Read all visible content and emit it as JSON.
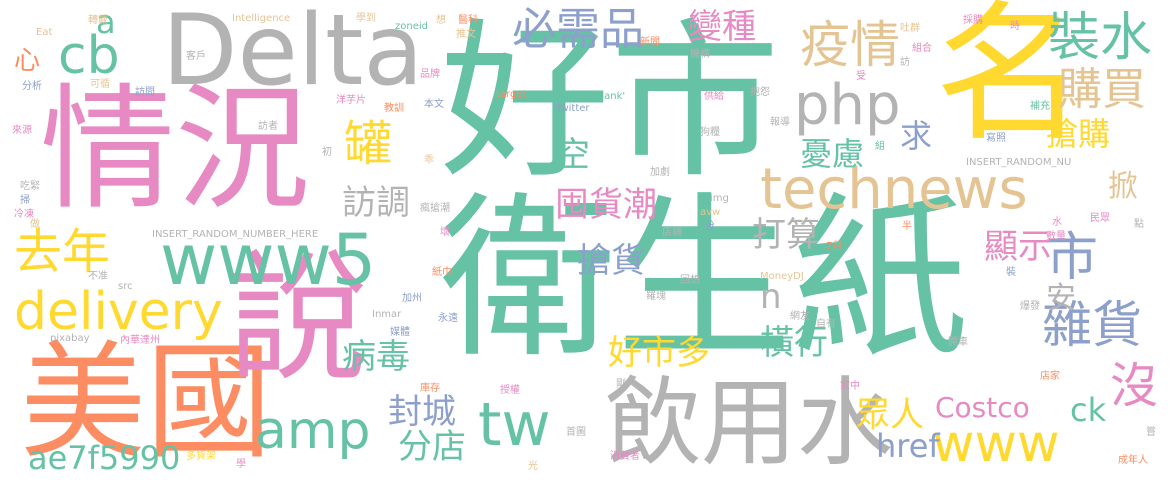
{
  "palette": {
    "teal": "#66c2a5",
    "orange": "#fc8d62",
    "blue": "#8da0cb",
    "pink": "#e78ac3",
    "yellow": "#ffd92f",
    "tan": "#e5c494",
    "gray": "#b3b3b3",
    "green": "#a6d854"
  },
  "words": [
    {
      "text": "衛生紙",
      "color": "#66c2a5"
    },
    {
      "text": "好市",
      "color": "#66c2a5"
    },
    {
      "text": "Delta",
      "color": "#b3b3b3"
    },
    {
      "text": "情況",
      "color": "#e78ac3"
    },
    {
      "text": "名",
      "color": "#ffd92f"
    },
    {
      "text": "美國",
      "color": "#fc8d62"
    },
    {
      "text": "說",
      "color": "#e78ac3"
    },
    {
      "text": "飲用水",
      "color": "#b3b3b3"
    },
    {
      "text": "technews",
      "color": "#e5c494"
    },
    {
      "text": "www5",
      "color": "#66c2a5"
    },
    {
      "text": "delivery",
      "color": "#ffd92f"
    },
    {
      "text": "www",
      "color": "#ffd92f"
    },
    {
      "text": "amp",
      "color": "#66c2a5"
    },
    {
      "text": "tw",
      "color": "#66c2a5"
    },
    {
      "text": "php",
      "color": "#b3b3b3"
    },
    {
      "text": "cb",
      "color": "#66c2a5"
    },
    {
      "text": "疫情",
      "color": "#e5c494"
    },
    {
      "text": "裝水",
      "color": "#66c2a5"
    },
    {
      "text": "購買",
      "color": "#e5c494"
    },
    {
      "text": "必需品",
      "color": "#8da0cb"
    },
    {
      "text": "去年",
      "color": "#ffd92f"
    },
    {
      "text": "市",
      "color": "#8da0cb"
    },
    {
      "text": "雜貨",
      "color": "#8da0cb"
    },
    {
      "text": "沒",
      "color": "#e78ac3"
    },
    {
      "text": "Costco",
      "color": "#e78ac3"
    },
    {
      "text": "好市多",
      "color": "#ffd92f"
    },
    {
      "text": "罐",
      "color": "#ffd92f"
    },
    {
      "text": "變種",
      "color": "#e78ac3"
    },
    {
      "text": "搶購",
      "color": "#ffd92f"
    },
    {
      "text": "憂慮",
      "color": "#66c2a5"
    },
    {
      "text": "訪調",
      "color": "#b3b3b3"
    },
    {
      "text": "囤貨潮",
      "color": "#e78ac3"
    },
    {
      "text": "打算",
      "color": "#b3b3b3"
    },
    {
      "text": "搶貨",
      "color": "#8da0cb"
    },
    {
      "text": "顯示",
      "color": "#e78ac3"
    },
    {
      "text": "病毒",
      "color": "#66c2a5"
    },
    {
      "text": "橫行",
      "color": "#66c2a5"
    },
    {
      "text": "封城",
      "color": "#8da0cb"
    },
    {
      "text": "分店",
      "color": "#66c2a5"
    },
    {
      "text": "眾人",
      "color": "#ffd92f"
    },
    {
      "text": "ck",
      "color": "#66c2a5"
    },
    {
      "text": "href",
      "color": "#8da0cb"
    },
    {
      "text": "ae7f5990",
      "color": "#66c2a5"
    },
    {
      "text": "空",
      "color": "#66c2a5"
    },
    {
      "text": "求",
      "color": "#8da0cb"
    },
    {
      "text": "安",
      "color": "#b3b3b3"
    },
    {
      "text": "n",
      "color": "#b3b3b3"
    },
    {
      "text": "掀",
      "color": "#e5c494"
    },
    {
      "text": "a",
      "color": "#66c2a5"
    },
    {
      "text": "心",
      "color": "#fc8d62"
    },
    {
      "text": "Intelligence",
      "color": "#e5c494"
    },
    {
      "text": "Eat",
      "color": "#e5c494"
    },
    {
      "text": "轉載",
      "color": "#e5c494"
    },
    {
      "text": "學到",
      "color": "#e5c494"
    },
    {
      "text": "zoneid",
      "color": "#66c2a5"
    },
    {
      "text": "想",
      "color": "#e5c494"
    },
    {
      "text": "醫科",
      "color": "#fc8d62"
    },
    {
      "text": "推文",
      "color": "#e5c494"
    },
    {
      "text": "新聞",
      "color": "#fc8d62"
    },
    {
      "text": "機構",
      "color": "#b3b3b3"
    },
    {
      "text": "客戶",
      "color": "#b3b3b3"
    },
    {
      "text": "品牌",
      "color": "#e78ac3"
    },
    {
      "text": "分析",
      "color": "#8da0cb"
    },
    {
      "text": "可循",
      "color": "#e5c494"
    },
    {
      "text": "訪問",
      "color": "#8da0cb"
    },
    {
      "text": "洋芋片",
      "color": "#e78ac3"
    },
    {
      "text": "教訓",
      "color": "#fc8d62"
    },
    {
      "text": "本文",
      "color": "#8da0cb"
    },
    {
      "text": "target",
      "color": "#fc8d62"
    },
    {
      "text": "_blank'",
      "color": "#66c2a5"
    },
    {
      "text": "供給",
      "color": "#e78ac3"
    },
    {
      "text": "抱怨",
      "color": "#b3b3b3"
    },
    {
      "text": "Twitter",
      "color": "#8da0cb"
    },
    {
      "text": "來源",
      "color": "#e78ac3"
    },
    {
      "text": "訪者",
      "color": "#b3b3b3"
    },
    {
      "text": "報導",
      "color": "#b3b3b3"
    },
    {
      "text": "狗糧",
      "color": "#b3b3b3"
    },
    {
      "text": "加劇",
      "color": "#b3b3b3"
    },
    {
      "text": "初",
      "color": "#b3b3b3"
    },
    {
      "text": "乖",
      "color": "#e5c494"
    },
    {
      "text": "吃緊",
      "color": "#b3b3b3"
    },
    {
      "text": "掃",
      "color": "#8da0cb"
    },
    {
      "text": "冷凍",
      "color": "#e78ac3"
    },
    {
      "text": "瘋搶潮",
      "color": "#b3b3b3"
    },
    {
      "text": "img",
      "color": "#b3b3b3"
    },
    {
      "text": "avw",
      "color": "#e5c494"
    },
    {
      "text": "做",
      "color": "#e5c494"
    },
    {
      "text": "INSERT_RANDOM_NUMBER_HERE",
      "color": "#b3b3b3"
    },
    {
      "text": "壞",
      "color": "#e78ac3"
    },
    {
      "text": "店鋪",
      "color": "#b3b3b3"
    },
    {
      "text": "分",
      "color": "#8da0cb"
    },
    {
      "text": "不准",
      "color": "#b3b3b3"
    },
    {
      "text": "紙巾",
      "color": "#fc8d62"
    },
    {
      "text": "src",
      "color": "#b3b3b3"
    },
    {
      "text": "7月",
      "color": "#fc8d62"
    },
    {
      "text": "回想",
      "color": "#b3b3b3"
    },
    {
      "text": "羅塊",
      "color": "#b3b3b3"
    },
    {
      "text": "MoneyDJ",
      "color": "#e5c494"
    },
    {
      "text": "加州",
      "color": "#8da0cb"
    },
    {
      "text": "Inmar",
      "color": "#b3b3b3"
    },
    {
      "text": "網友",
      "color": "#b3b3b3"
    },
    {
      "text": "媒體",
      "color": "#8da0cb"
    },
    {
      "text": "永遠",
      "color": "#8da0cb"
    },
    {
      "text": "自有",
      "color": "#b3b3b3"
    },
    {
      "text": "pixabay",
      "color": "#b3b3b3"
    },
    {
      "text": "內華達州",
      "color": "#e78ac3"
    },
    {
      "text": "授權",
      "color": "#e78ac3"
    },
    {
      "text": "剛",
      "color": "#b3b3b3"
    },
    {
      "text": "家中",
      "color": "#e78ac3"
    },
    {
      "text": "庫存",
      "color": "#fc8d62"
    },
    {
      "text": "首圖",
      "color": "#b3b3b3"
    },
    {
      "text": "消費者",
      "color": "#e78ac3"
    },
    {
      "text": "多貨架",
      "color": "#ffd92f"
    },
    {
      "text": "學",
      "color": "#e78ac3"
    },
    {
      "text": "光",
      "color": "#e5c494"
    },
    {
      "text": "成年人",
      "color": "#fc8d62"
    },
    {
      "text": "時",
      "color": "#e78ac3"
    },
    {
      "text": "採購",
      "color": "#e78ac3"
    },
    {
      "text": "吐群",
      "color": "#e5c494"
    },
    {
      "text": "組合",
      "color": "#e78ac3"
    },
    {
      "text": "訪",
      "color": "#b3b3b3"
    },
    {
      "text": "受",
      "color": "#e78ac3"
    },
    {
      "text": "補充",
      "color": "#66c2a5"
    },
    {
      "text": "寫照",
      "color": "#8da0cb"
    },
    {
      "text": "組",
      "color": "#66c2a5"
    },
    {
      "text": "INSERT_RANDOM_NU",
      "color": "#b3b3b3"
    },
    {
      "text": "半",
      "color": "#fc8d62"
    },
    {
      "text": "水",
      "color": "#e78ac3"
    },
    {
      "text": "數量",
      "color": "#e78ac3"
    },
    {
      "text": "民眾",
      "color": "#e78ac3"
    },
    {
      "text": "點",
      "color": "#b3b3b3"
    },
    {
      "text": "裝",
      "color": "#8da0cb"
    },
    {
      "text": "爆發",
      "color": "#b3b3b3"
    },
    {
      "text": "開車",
      "color": "#b3b3b3"
    },
    {
      "text": "店家",
      "color": "#fc8d62"
    },
    {
      "text": "嘗",
      "color": "#b3b3b3"
    }
  ]
}
